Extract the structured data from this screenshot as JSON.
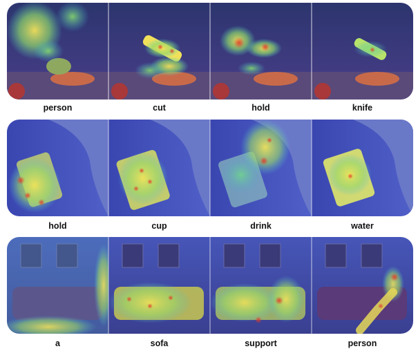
{
  "rows": [
    {
      "labels": [
        "person",
        "cut",
        "hold",
        "knife"
      ]
    },
    {
      "labels": [
        "hold",
        "cup",
        "drink",
        "water"
      ]
    },
    {
      "labels": [
        "a",
        "sofa",
        "support",
        "person"
      ]
    }
  ],
  "colors": {
    "overlay_blue": "#3a3fb8",
    "heat_green": "#4fd08a",
    "heat_yellow": "#e7e85a",
    "heat_red": "#e33a2a"
  }
}
